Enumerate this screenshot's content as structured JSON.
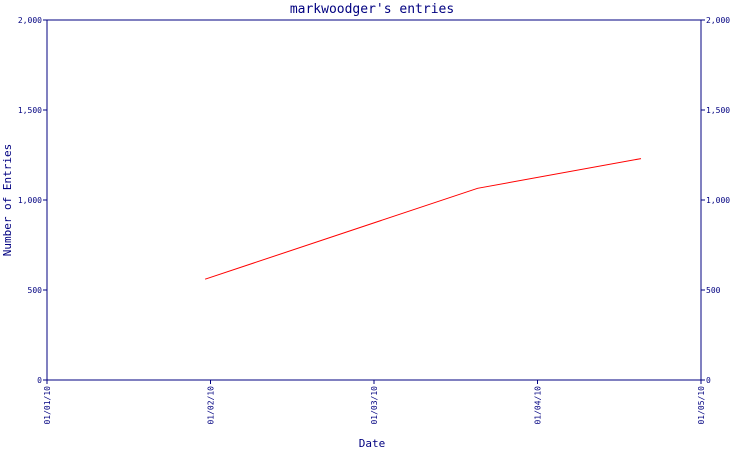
{
  "chart_data": {
    "type": "line",
    "title": "markwoodger's entries",
    "xlabel": "Date",
    "ylabel": "Number of Entries",
    "x_ticks": [
      "01/01/10",
      "01/02/10",
      "01/03/10",
      "01/04/10",
      "01/05/10"
    ],
    "y_ticks": [
      "0",
      "500",
      "1,000",
      "1,500",
      "2,000"
    ],
    "ylim": [
      0,
      2000
    ],
    "xlim": [
      "2010-01-01",
      "2010-05-01"
    ],
    "grid": false,
    "right_axis": true,
    "series": [
      {
        "color": "#ff0000",
        "x": [
          "2010-01-30",
          "2010-03-21",
          "2010-04-20"
        ],
        "y": [
          560,
          1065,
          1230
        ]
      }
    ]
  },
  "colors": {
    "axis": "#000080",
    "line": "#ff0000"
  }
}
